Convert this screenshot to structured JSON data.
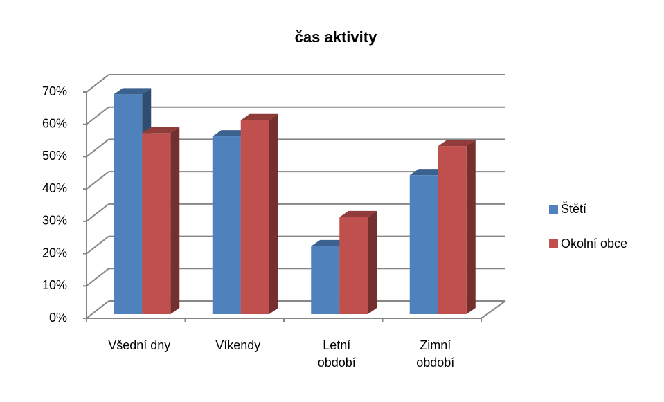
{
  "chart_data": {
    "type": "bar3d",
    "title": "čas aktivity",
    "categories": [
      "Všední dny",
      "Víkendy",
      "Letní období",
      "Zimní období"
    ],
    "series": [
      {
        "name": "Štětí",
        "color": "#4f81bd",
        "values": [
          68,
          55,
          21,
          43
        ]
      },
      {
        "name": "Okolní obce",
        "color": "#c0504d",
        "values": [
          56,
          60,
          30,
          52
        ]
      }
    ],
    "ylim": [
      0,
      70
    ],
    "yticks": [
      {
        "value": 0,
        "label": "0%"
      },
      {
        "value": 10,
        "label": "10%"
      },
      {
        "value": 20,
        "label": "20%"
      },
      {
        "value": 30,
        "label": "30%"
      },
      {
        "value": 40,
        "label": "40%"
      },
      {
        "value": 50,
        "label": "50%"
      },
      {
        "value": 60,
        "label": "60%"
      },
      {
        "value": 70,
        "label": "70%"
      }
    ],
    "grid": true,
    "legend": "right"
  }
}
